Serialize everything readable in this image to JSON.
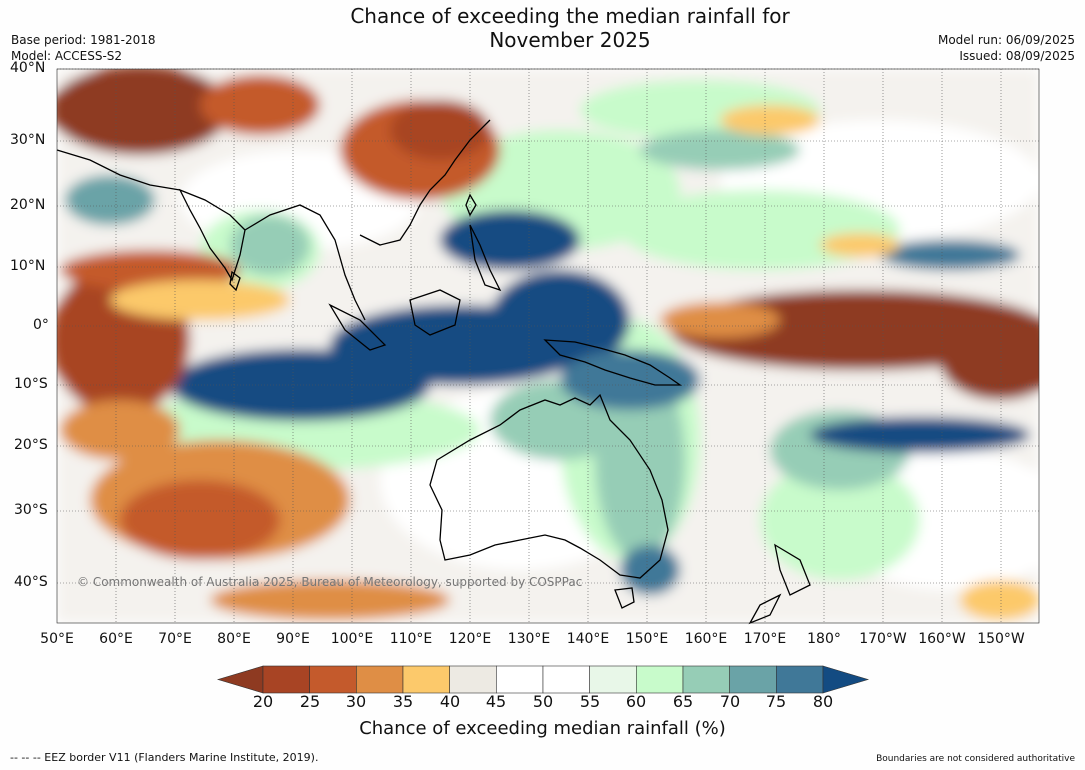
{
  "title": {
    "line1": "Chance of exceeding the median rainfall for",
    "line2": "November 2025"
  },
  "meta": {
    "base_period": "Base period: 1981-2018",
    "model": "Model: ACCESS-S2",
    "model_run": "Model run: 06/09/2025",
    "issued": "Issued: 08/09/2025"
  },
  "map": {
    "lat_labels": [
      "40°N",
      "30°N",
      "20°N",
      "10°N",
      "0°",
      "10°S",
      "20°S",
      "30°S",
      "40°S"
    ],
    "lon_labels": [
      "50°E",
      "60°E",
      "70°E",
      "80°E",
      "90°E",
      "100°E",
      "110°E",
      "120°E",
      "130°E",
      "140°E",
      "150°E",
      "160°E",
      "170°E",
      "180°",
      "170°W",
      "160°W",
      "150°W"
    ],
    "copyright": "© Commonwealth of Australia 2025, Bureau of Meteorology, supported by COSPPac"
  },
  "colorbar": {
    "ticks": [
      "20",
      "25",
      "30",
      "35",
      "40",
      "45",
      "50",
      "55",
      "60",
      "65",
      "70",
      "75",
      "80"
    ],
    "colors": [
      "#8e3a21",
      "#a84424",
      "#c45a2c",
      "#df8e45",
      "#fcc96b",
      "#edeae3",
      "#ffffff",
      "#ffffff",
      "#e8f7e8",
      "#c8fbcb",
      "#96cdb6",
      "#6aa3a7",
      "#407898",
      "#134b82"
    ],
    "label": "Chance of exceeding median rainfall (%)"
  },
  "footer": {
    "eez": "--  --  -- EEZ border V11 (Flanders Marine Institute, 2019).",
    "disclaimer": "Boundaries are not considered authoritative"
  }
}
